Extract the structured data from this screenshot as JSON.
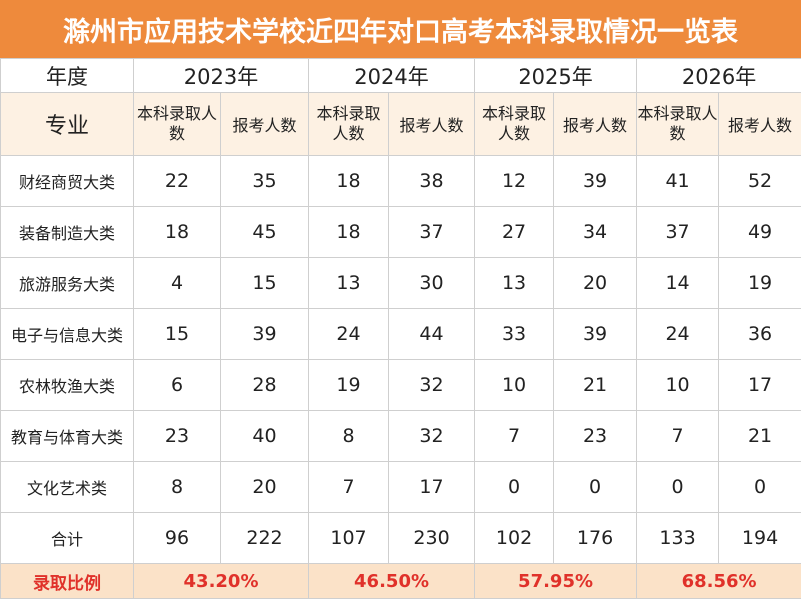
{
  "title": "滁州市应用技术学校近四年对口高考本科录取情况一览表",
  "header": {
    "year_label": "年度",
    "major_label": "专业",
    "years": [
      "2023年",
      "2024年",
      "2025年",
      "2026年"
    ],
    "admitted_label": "本科录取人数",
    "applicants_label": "报考人数"
  },
  "rows": [
    {
      "category": "财经商贸大类",
      "values": [
        "22",
        "35",
        "18",
        "38",
        "12",
        "39",
        "41",
        "52"
      ]
    },
    {
      "category": "装备制造大类",
      "values": [
        "18",
        "45",
        "18",
        "37",
        "27",
        "34",
        "37",
        "49"
      ]
    },
    {
      "category": "旅游服务大类",
      "values": [
        "4",
        "15",
        "13",
        "30",
        "13",
        "20",
        "14",
        "19"
      ]
    },
    {
      "category": "电子与信息大类",
      "values": [
        "15",
        "39",
        "24",
        "44",
        "33",
        "39",
        "24",
        "36"
      ]
    },
    {
      "category": "农林牧渔大类",
      "values": [
        "6",
        "28",
        "19",
        "32",
        "10",
        "21",
        "10",
        "17"
      ]
    },
    {
      "category": "教育与体育大类",
      "values": [
        "23",
        "40",
        "8",
        "32",
        "7",
        "23",
        "7",
        "21"
      ]
    },
    {
      "category": "文化艺术类",
      "values": [
        "8",
        "20",
        "7",
        "17",
        "0",
        "0",
        "0",
        "0"
      ]
    }
  ],
  "total": {
    "label": "合计",
    "values": [
      "96",
      "222",
      "107",
      "230",
      "102",
      "176",
      "133",
      "194"
    ]
  },
  "ratio": {
    "label": "录取比例",
    "values": [
      "43.20%",
      "46.50%",
      "57.95%",
      "68.56%"
    ]
  },
  "colors": {
    "title_bg": "#ee8a3c",
    "header_bg": "#fdf1e3",
    "ratio_bg": "#fbe2c8",
    "ratio_text": "#e0312a"
  }
}
